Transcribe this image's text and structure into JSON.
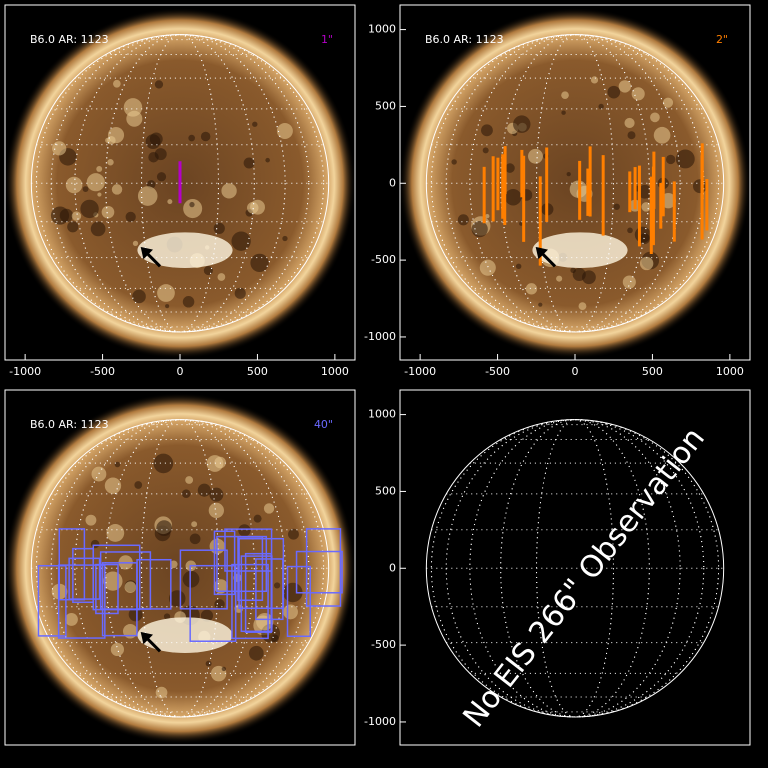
{
  "chart_data": [
    {
      "type": "solar-map",
      "label": "B6.0 AR: 1123",
      "slit": "1\"",
      "color": "#b400c8",
      "xlim": [
        -1130,
        1130
      ],
      "ylim": [
        -1150,
        1160
      ],
      "xticks": [
        -1000,
        -500,
        0,
        500,
        1000
      ]
    },
    {
      "type": "solar-map",
      "label": "B6.0 AR: 1123",
      "slit": "2\"",
      "color": "#ff7f00",
      "xlim": [
        -1130,
        1130
      ],
      "ylim": [
        -1150,
        1160
      ],
      "xticks": [
        -1000,
        -500,
        0,
        500,
        1000
      ],
      "yticks": [
        -1000,
        -500,
        0,
        500,
        1000
      ]
    },
    {
      "type": "solar-map",
      "label": "B6.0 AR: 1123",
      "slit": "40\"",
      "color": "#6a6aff",
      "xlim": [
        -1130,
        1130
      ],
      "ylim": [
        -1150,
        1160
      ]
    },
    {
      "type": "empty-map",
      "annotation": "No EIS 266\" Observation",
      "xlim": [
        -1130,
        1130
      ],
      "ylim": [
        -1150,
        1160
      ],
      "yticks": [
        -1000,
        -500,
        0,
        500,
        1000
      ]
    }
  ]
}
